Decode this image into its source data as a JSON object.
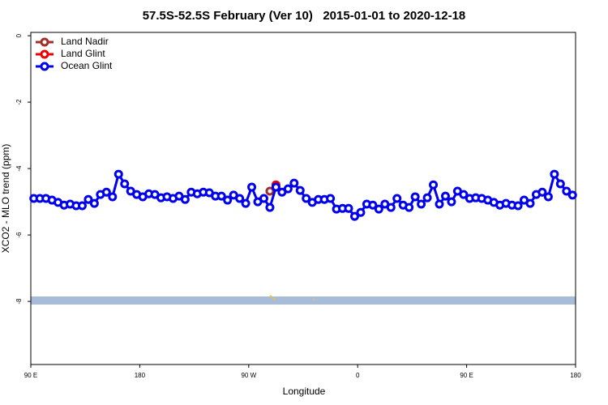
{
  "chart_data": {
    "type": "line",
    "title": "57.5S-52.5S February (Ver 10)   2015-01-01 to 2020-12-18",
    "x_label": "Longitude",
    "y_label": "XCO2 - MLO trend (ppm)",
    "xlim": [
      90,
      540
    ],
    "ylim": [
      -9.9,
      0.1
    ],
    "xticks": [
      {
        "value": 90,
        "label": "90 E"
      },
      {
        "value": 180,
        "label": "180"
      },
      {
        "value": 270,
        "label": "90 W"
      },
      {
        "value": 360,
        "label": "0"
      },
      {
        "value": 450,
        "label": "90 E"
      },
      {
        "value": 540,
        "label": "180"
      }
    ],
    "yticks": [
      0,
      -2,
      -4,
      -6,
      -8
    ],
    "legend": "upper left",
    "series": [
      {
        "name": "Land Nadir",
        "color": "#a0302c",
        "x": [
          287.5
        ],
        "values": [
          -4.68
        ]
      },
      {
        "name": "Land Glint",
        "color": "#ee0000",
        "x": [
          292.5
        ],
        "values": [
          -4.49
        ]
      },
      {
        "name": "Ocean Glint",
        "color": "#0000ee",
        "x": [
          92.5,
          97.5,
          102.5,
          107.5,
          112.5,
          117.5,
          122.5,
          127.5,
          132.5,
          137.5,
          142.5,
          147.5,
          152.5,
          157.5,
          162.5,
          167.5,
          172.5,
          177.5,
          182.5,
          187.5,
          192.5,
          197.5,
          202.5,
          207.5,
          212.5,
          217.5,
          222.5,
          227.5,
          232.5,
          237.5,
          242.5,
          247.5,
          252.5,
          257.5,
          262.5,
          267.5,
          272.5,
          277.5,
          282.5,
          287.5,
          292.5,
          297.5,
          302.5,
          307.5,
          312.5,
          317.5,
          322.5,
          327.5,
          332.5,
          337.5,
          342.5,
          347.5,
          352.5,
          357.5,
          362.5,
          367.5,
          372.5,
          377.5,
          382.5,
          387.5,
          392.5,
          397.5,
          402.5,
          407.5,
          412.5,
          417.5,
          422.5,
          427.5,
          432.5,
          437.5,
          442.5,
          447.5,
          452.5,
          457.5,
          462.5,
          467.5,
          472.5,
          477.5,
          482.5,
          487.5,
          492.5,
          497.5,
          502.5,
          507.5,
          512.5,
          517.5,
          522.5,
          527.5,
          532.5,
          537.5
        ],
        "values": [
          -4.9,
          -4.9,
          -4.9,
          -4.95,
          -5.02,
          -5.1,
          -5.07,
          -5.12,
          -5.12,
          -4.93,
          -5.05,
          -4.78,
          -4.71,
          -4.85,
          -4.17,
          -4.46,
          -4.68,
          -4.78,
          -4.85,
          -4.76,
          -4.78,
          -4.88,
          -4.85,
          -4.9,
          -4.83,
          -4.93,
          -4.71,
          -4.76,
          -4.71,
          -4.73,
          -4.83,
          -4.83,
          -4.95,
          -4.8,
          -4.9,
          -5.05,
          -4.56,
          -5.0,
          -4.9,
          -5.17,
          -4.56,
          -4.71,
          -4.61,
          -4.44,
          -4.66,
          -4.9,
          -5.02,
          -4.93,
          -4.93,
          -4.9,
          -5.22,
          -5.2,
          -5.2,
          -5.44,
          -5.32,
          -5.07,
          -5.1,
          -5.22,
          -5.07,
          -5.17,
          -4.9,
          -5.1,
          -5.17,
          -4.85,
          -5.07,
          -4.88,
          -4.49,
          -5.07,
          -4.83,
          -5.0,
          -4.68,
          -4.78,
          -4.9,
          -4.88,
          -4.9,
          -4.95,
          -5.02,
          -5.1,
          -5.05,
          -5.1,
          -5.12,
          -4.95,
          -5.05,
          -4.78,
          -4.71,
          -4.85,
          -4.17,
          -4.46,
          -4.68,
          -4.8
        ]
      }
    ]
  }
}
